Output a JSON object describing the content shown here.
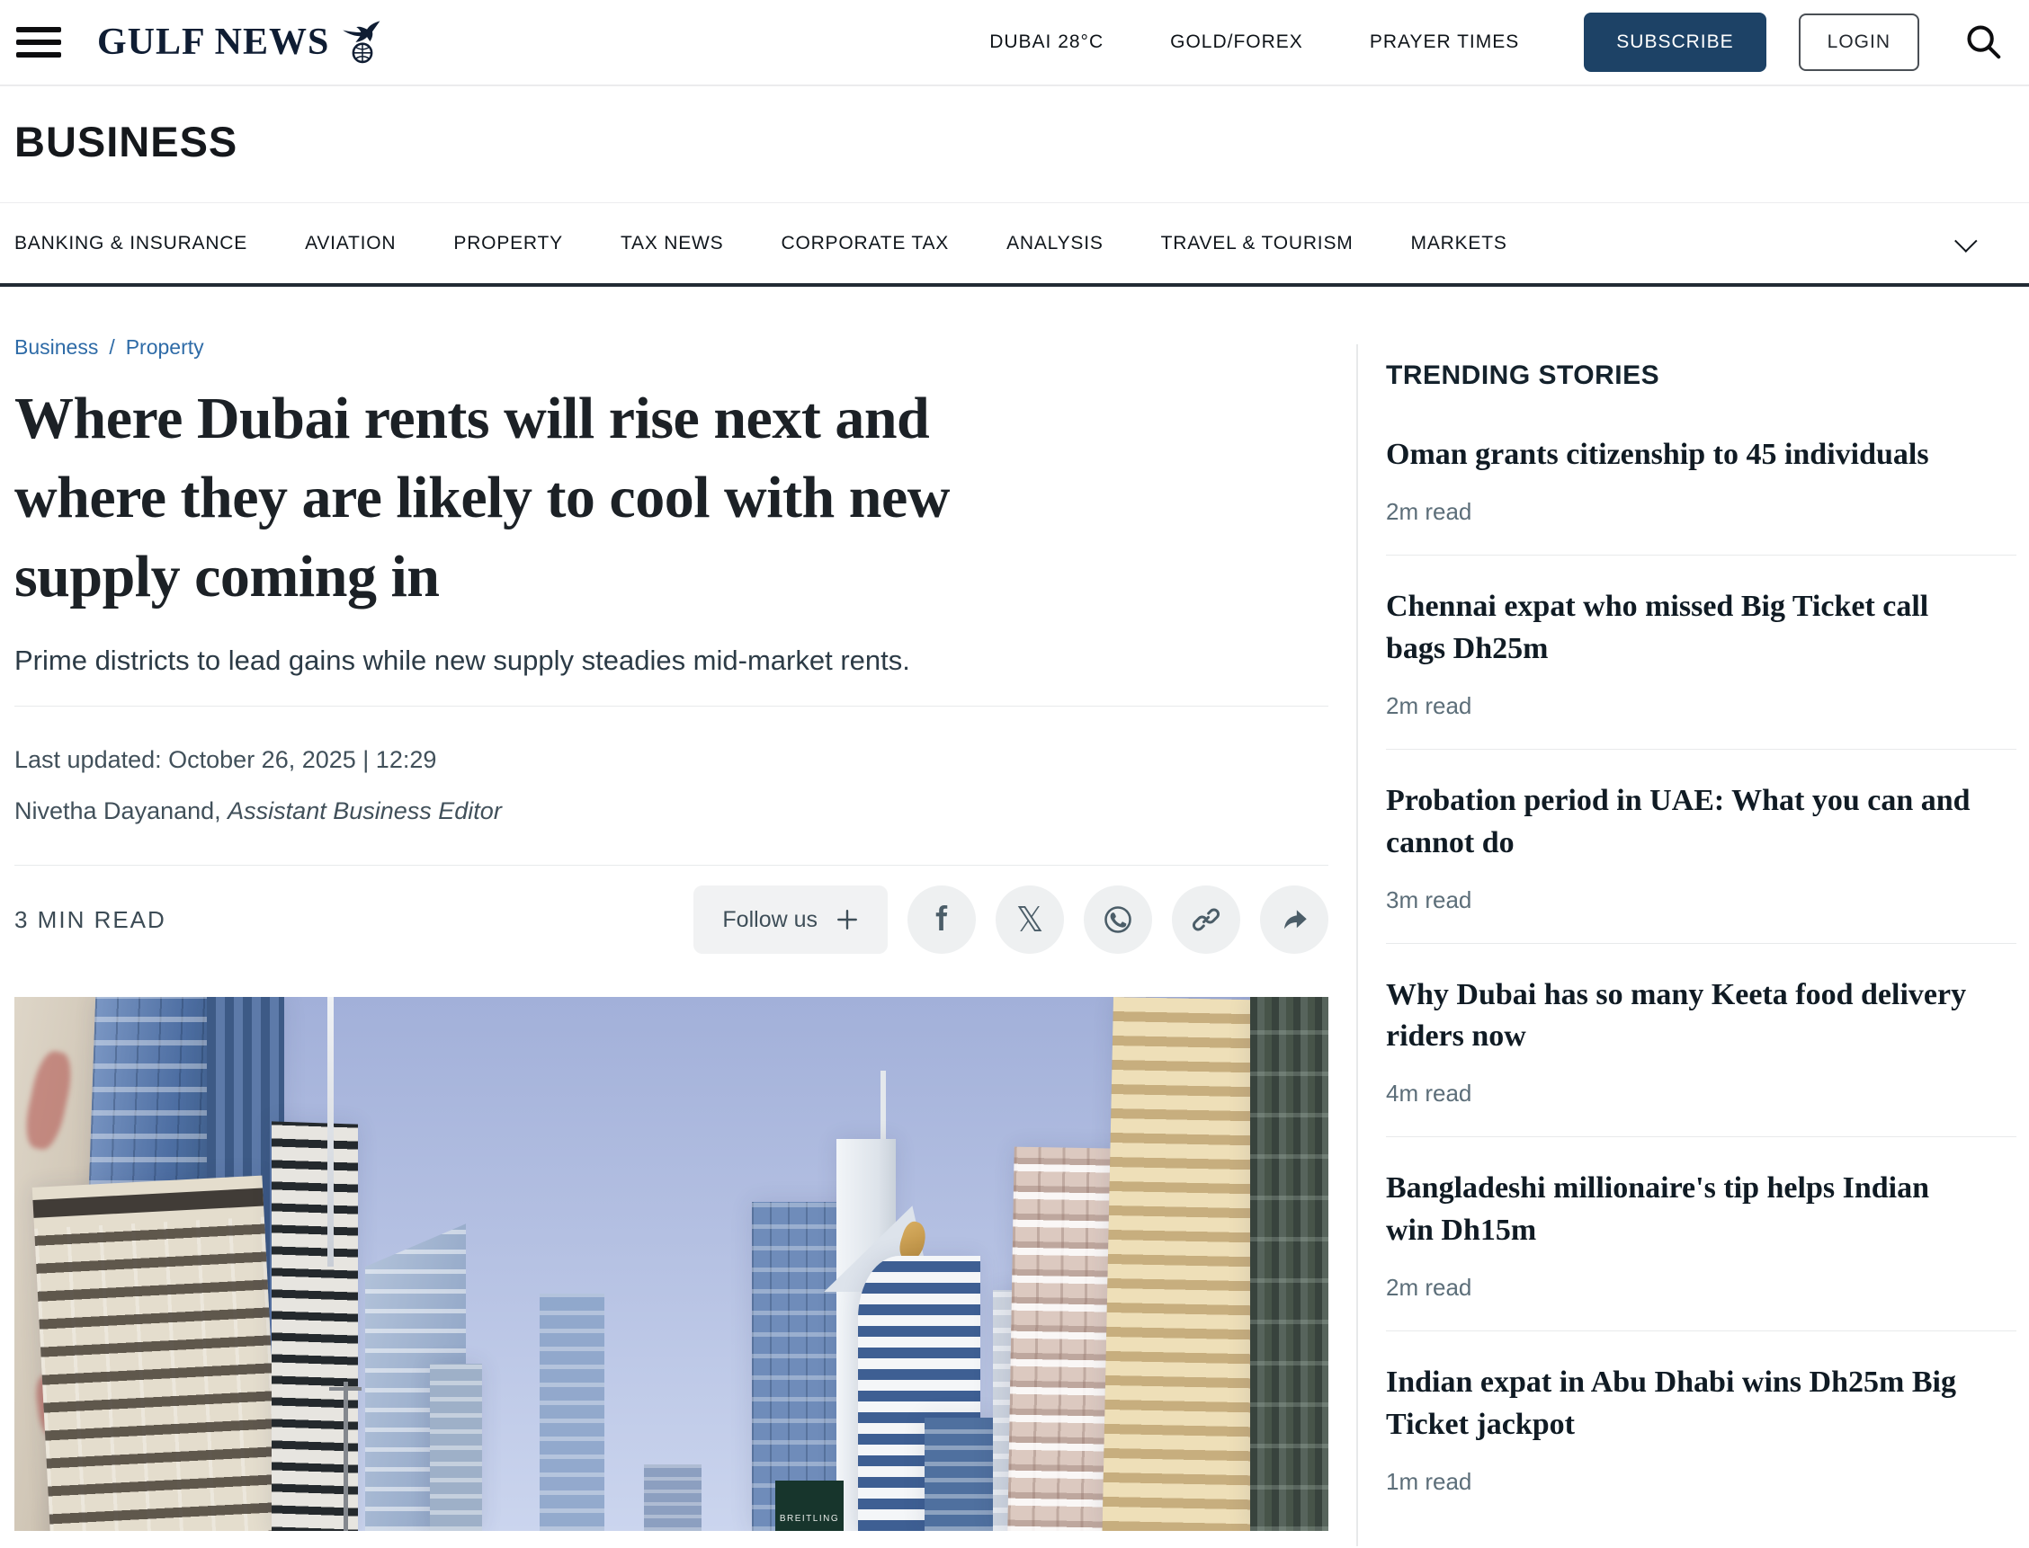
{
  "header": {
    "brand": "GULF NEWS",
    "weather": "DUBAI 28°C",
    "gold_forex": "GOLD/FOREX",
    "prayer_times": "PRAYER TIMES",
    "subscribe": "SUBSCRIBE",
    "login": "LOGIN"
  },
  "section": {
    "title": "BUSINESS",
    "nav_items": [
      "BANKING & INSURANCE",
      "AVIATION",
      "PROPERTY",
      "TAX NEWS",
      "CORPORATE TAX",
      "ANALYSIS",
      "TRAVEL & TOURISM",
      "MARKETS"
    ]
  },
  "article": {
    "breadcrumb": {
      "section": "Business",
      "separator": "/",
      "subsection": "Property"
    },
    "title": "Where Dubai rents will rise next and where they are likely to cool with new supply coming in",
    "subtitle": "Prime districts to lead gains while new supply steadies mid-market rents.",
    "last_updated": "Last updated: October 26, 2025 | 12:29",
    "author_name": "Nivetha Dayanand,",
    "author_title": "Assistant Business Editor",
    "read_time": "3 MIN READ",
    "follow_us": "Follow us",
    "image_billboard_text": "BREITLING"
  },
  "trending": {
    "heading": "TRENDING STORIES",
    "items": [
      {
        "title": "Oman grants citizenship to 45 individuals",
        "read": "2m read"
      },
      {
        "title": "Chennai expat who missed Big Ticket call bags Dh25m",
        "read": "2m read"
      },
      {
        "title": "Probation period in UAE: What you can and cannot do",
        "read": "3m read"
      },
      {
        "title": "Why Dubai has so many Keeta food delivery riders now",
        "read": "4m read"
      },
      {
        "title": "Bangladeshi millionaire's tip helps Indian win Dh15m",
        "read": "2m read"
      },
      {
        "title": "Indian expat in Abu Dhabi wins Dh25m Big Ticket jackpot",
        "read": "1m read"
      }
    ]
  },
  "colors": {
    "accent_navy": "#1d4266",
    "link_blue": "#2e6ba7",
    "nav_border": "#222b34",
    "icon_slate": "#4b5d68",
    "logo_navy": "#0f1d33"
  }
}
